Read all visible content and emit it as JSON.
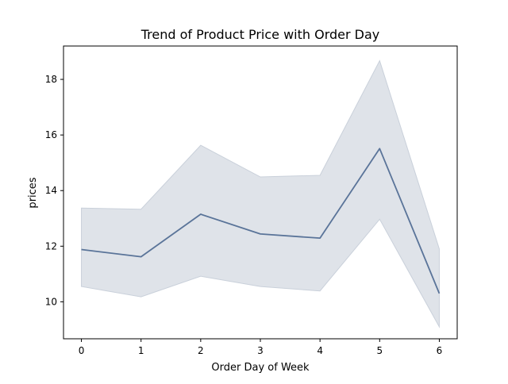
{
  "chart_data": {
    "type": "line",
    "title": "Trend of Product Price with Order Day",
    "xlabel": "Order Day of Week",
    "ylabel": "prices",
    "x": [
      0,
      1,
      2,
      3,
      4,
      5,
      6
    ],
    "series": [
      {
        "values": [
          11.88,
          11.62,
          13.15,
          12.44,
          12.29,
          15.51,
          10.3
        ],
        "ci_lower": [
          10.55,
          10.18,
          10.92,
          10.55,
          10.39,
          12.97,
          9.1
        ],
        "ci_upper": [
          13.37,
          13.33,
          15.63,
          14.49,
          14.55,
          18.67,
          11.9
        ],
        "color": "#5a7499",
        "band_color": "#dfe3e9"
      }
    ],
    "xlim": [
      -0.3,
      6.3
    ],
    "ylim": [
      8.67,
      19.2
    ],
    "xticks": [
      "0",
      "1",
      "2",
      "3",
      "4",
      "5",
      "6"
    ],
    "yticks": [
      "10",
      "12",
      "14",
      "16",
      "18"
    ],
    "grid": false
  }
}
